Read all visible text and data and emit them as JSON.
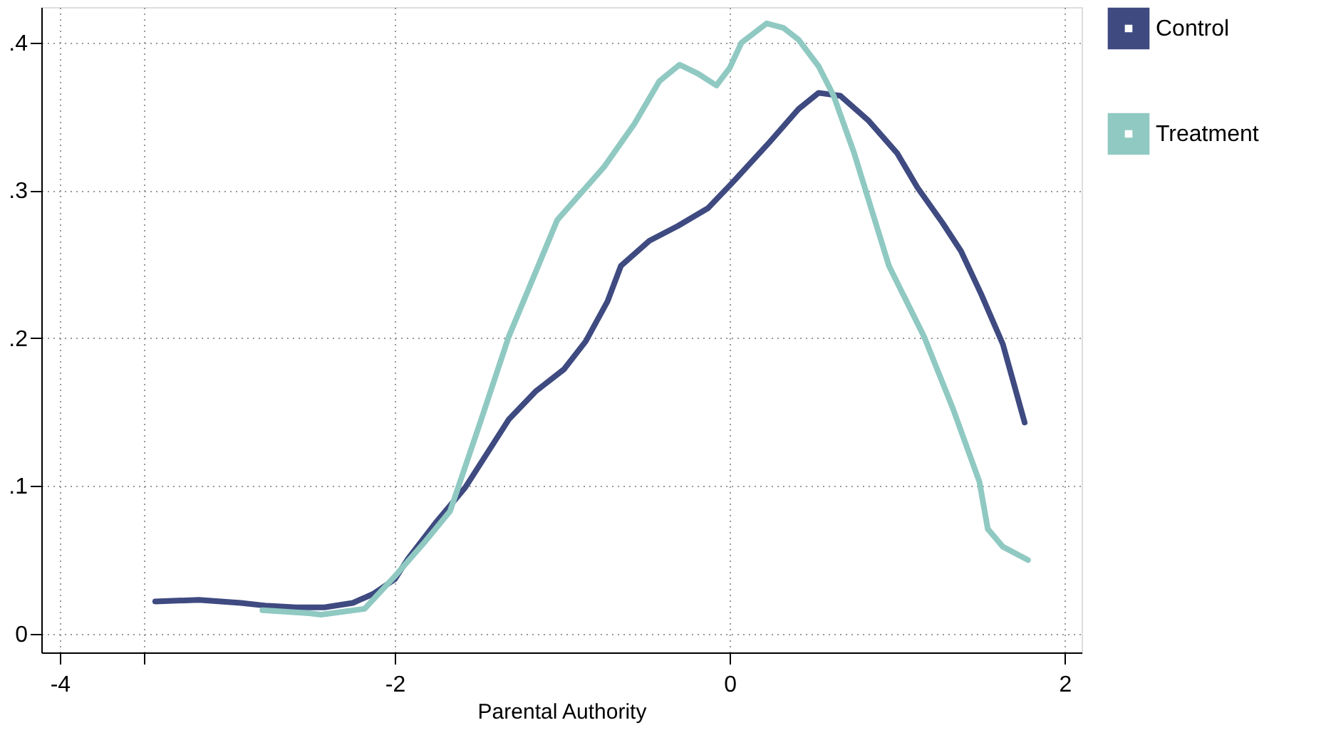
{
  "chart_data": {
    "type": "line",
    "xlabel": "Parental Authority",
    "xlim": [
      -4.11,
      2.1
    ],
    "ylim": [
      -0.0125,
      0.424
    ],
    "xticks": [
      -4,
      {
        "value": -3.5,
        "label": null
      },
      -2,
      0,
      2
    ],
    "yticks": [
      0,
      {
        "value": 0.1,
        "label": ".1"
      },
      {
        "value": 0.2,
        "label": ".2"
      },
      {
        "value": 0.3,
        "label": ".3"
      },
      {
        "value": 0.4,
        "label": ".4"
      }
    ],
    "grid": true,
    "legend": "right",
    "line_style": "solid",
    "marker": "none",
    "series": [
      {
        "name": "Control",
        "color": "#3e4a80",
        "x": [
          -3.43,
          -3.17,
          -2.92,
          -2.76,
          -2.59,
          -2.42,
          -2.25,
          -2.13,
          -2.0,
          -1.92,
          -1.75,
          -1.58,
          -1.45,
          -1.32,
          -1.16,
          -0.99,
          -0.86,
          -0.73,
          -0.65,
          -0.48,
          -0.31,
          -0.13,
          0.03,
          0.24,
          0.41,
          0.53,
          0.66,
          0.83,
          1.0,
          1.12,
          1.27,
          1.38,
          1.5,
          1.63,
          1.76
        ],
        "values": [
          0.022,
          0.023,
          0.021,
          0.019,
          0.018,
          0.018,
          0.021,
          0.027,
          0.037,
          0.051,
          0.076,
          0.099,
          0.122,
          0.145,
          0.164,
          0.179,
          0.198,
          0.225,
          0.249,
          0.266,
          0.276,
          0.288,
          0.307,
          0.333,
          0.355,
          0.366,
          0.364,
          0.347,
          0.325,
          0.302,
          0.278,
          0.259,
          0.23,
          0.196,
          0.143
        ]
      },
      {
        "name": "Treatment",
        "color": "#8fc9c2",
        "x": [
          -2.79,
          -2.51,
          -2.44,
          -2.18,
          -2.0,
          -1.83,
          -1.67,
          -1.49,
          -1.32,
          -1.03,
          -0.75,
          -0.57,
          -0.42,
          -0.3,
          -0.19,
          -0.08,
          0.0,
          0.07,
          0.22,
          0.32,
          0.41,
          0.53,
          0.62,
          0.74,
          0.95,
          1.16,
          1.33,
          1.49,
          1.54,
          1.63,
          1.78
        ],
        "values": [
          0.016,
          0.014,
          0.013,
          0.017,
          0.039,
          0.061,
          0.083,
          0.143,
          0.201,
          0.28,
          0.316,
          0.345,
          0.374,
          0.385,
          0.379,
          0.371,
          0.383,
          0.4,
          0.413,
          0.41,
          0.402,
          0.384,
          0.364,
          0.326,
          0.249,
          0.201,
          0.153,
          0.103,
          0.071,
          0.059,
          0.05
        ]
      }
    ]
  }
}
